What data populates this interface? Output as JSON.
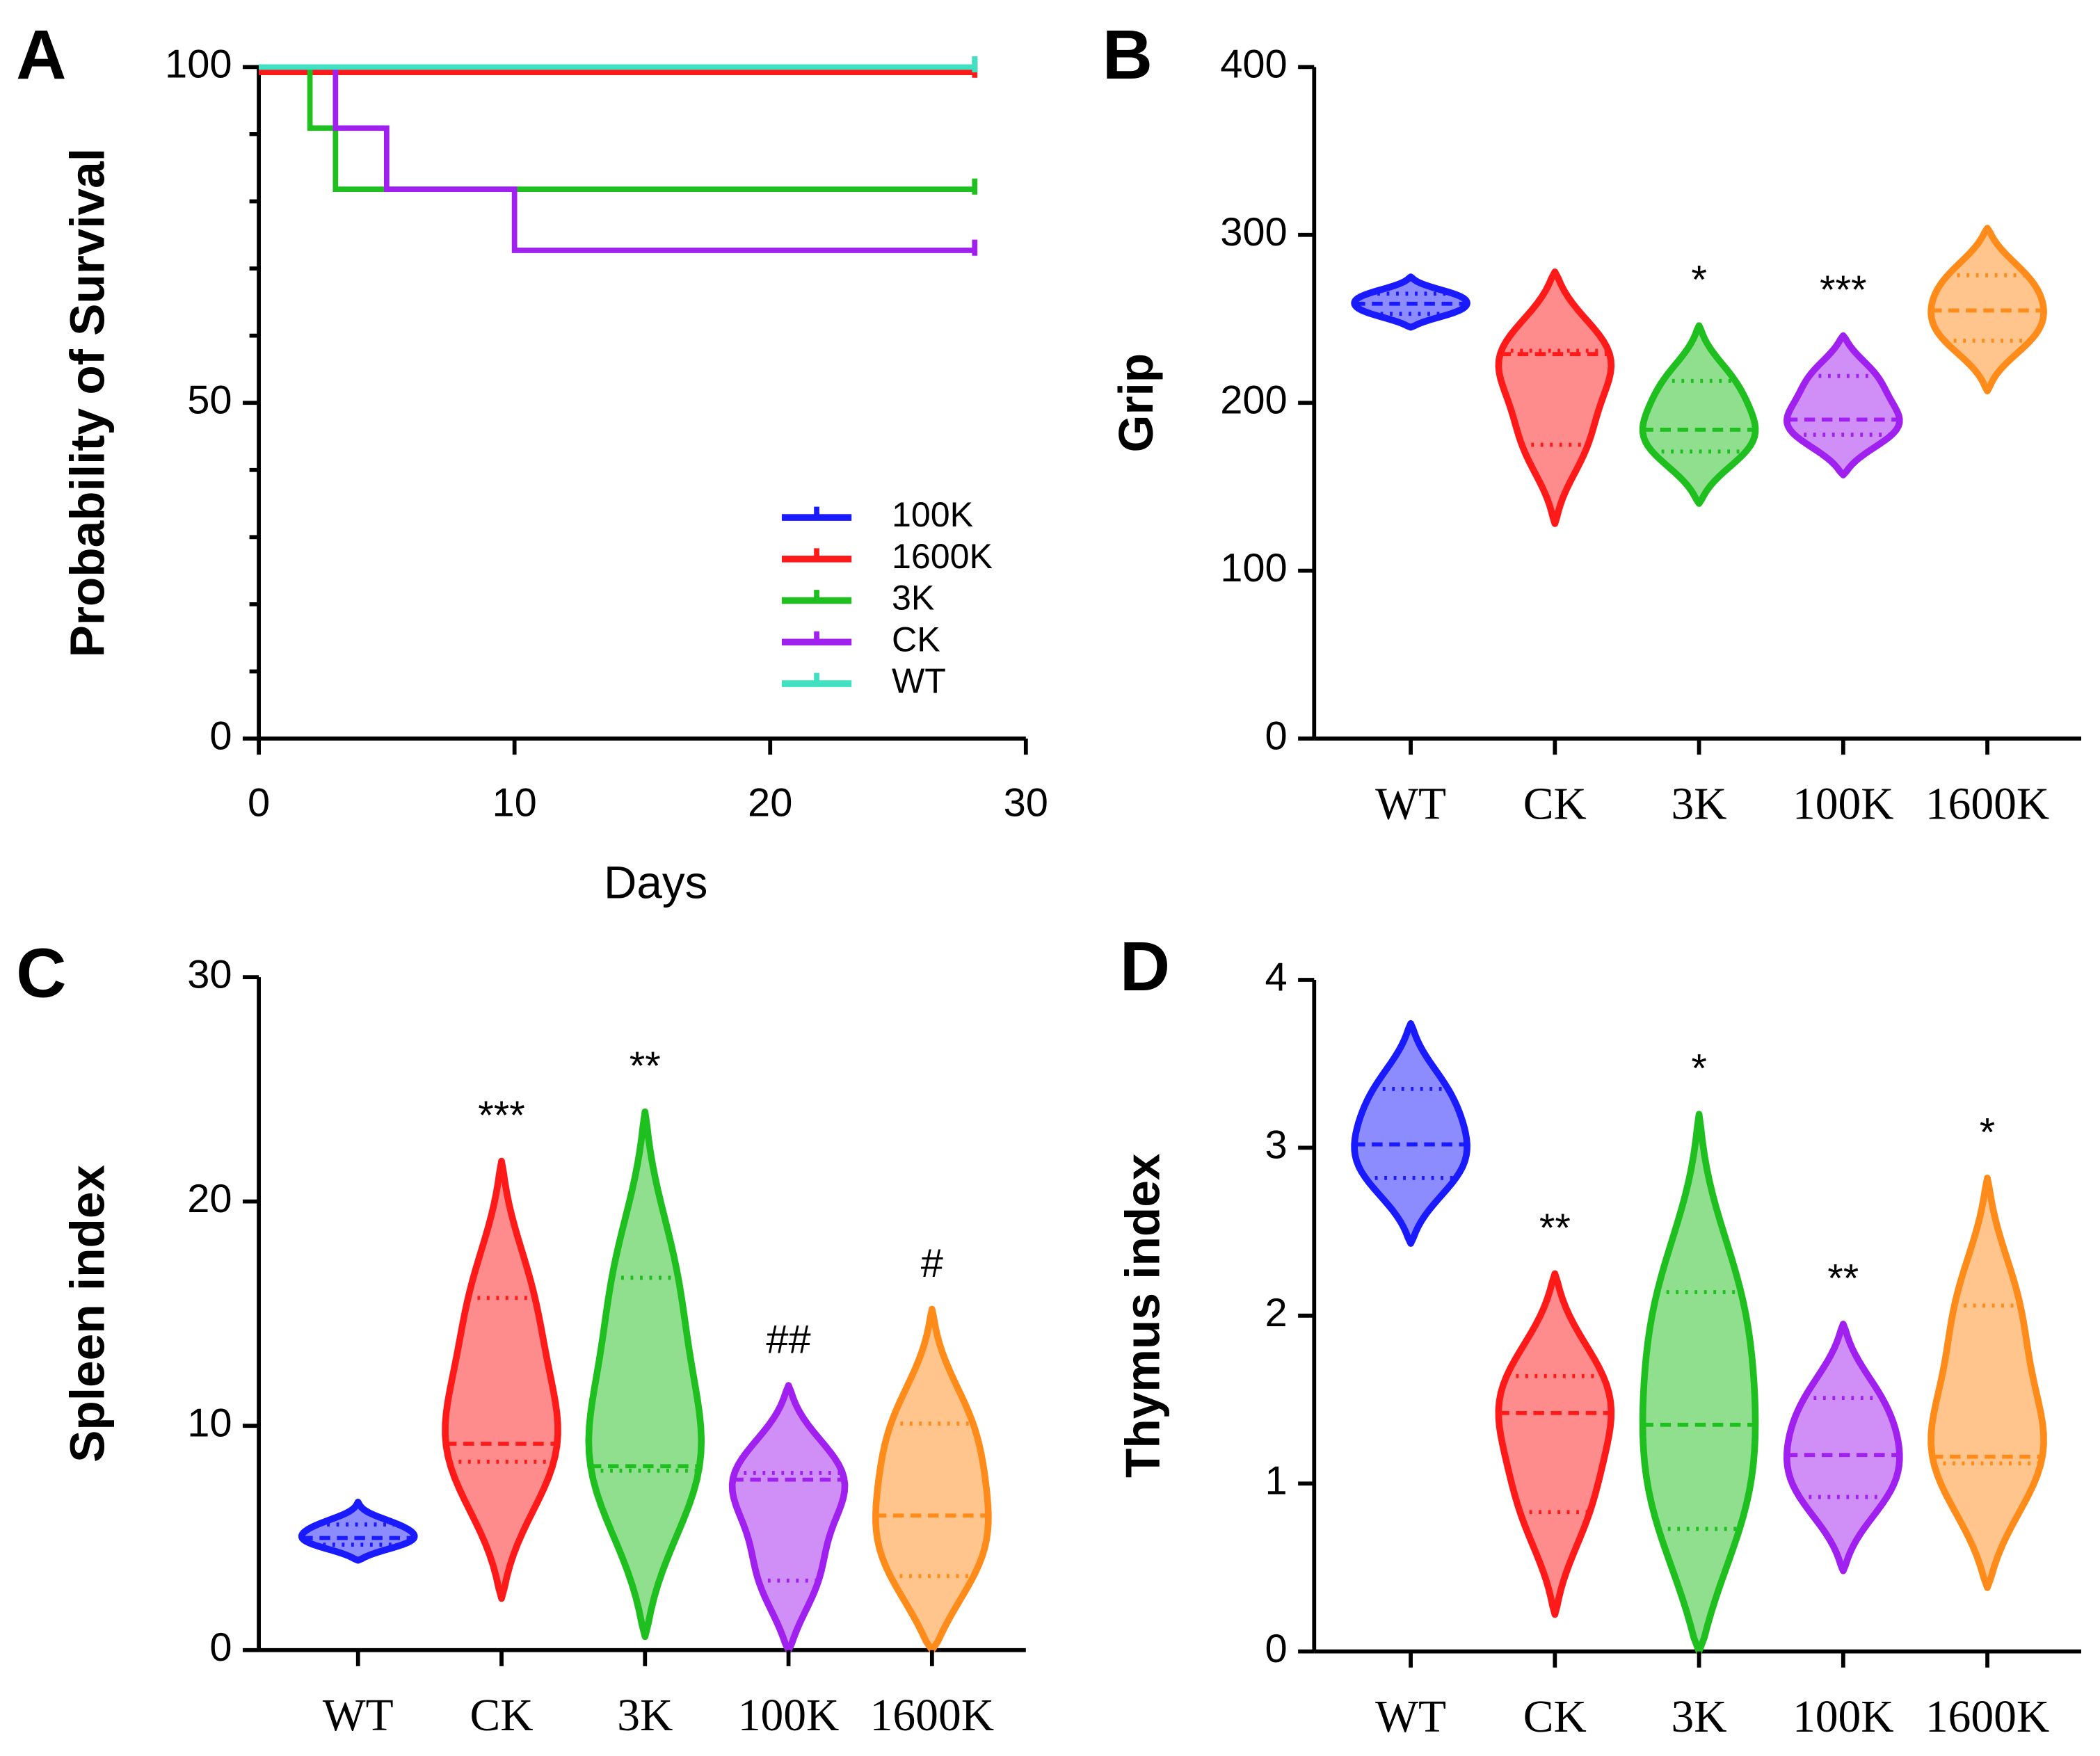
{
  "chart_data": [
    {
      "type": "step",
      "panel": "A",
      "ylabel": "Probability of Survival",
      "xlabel": "Days",
      "xlim": [
        0,
        30
      ],
      "xticks": [
        0,
        10,
        20,
        30
      ],
      "ylim": [
        0,
        100
      ],
      "yticks": [
        0,
        50,
        100
      ],
      "series": [
        {
          "name": "100K",
          "color": "#1a1aff",
          "x": [
            0,
            28
          ],
          "values": [
            100,
            100
          ]
        },
        {
          "name": "1600K",
          "color": "#ff1a1a",
          "x": [
            0,
            28
          ],
          "values": [
            99.2,
            99.2
          ]
        },
        {
          "name": "3K",
          "color": "#1fbf1f",
          "x": [
            0,
            2,
            3,
            28
          ],
          "values": [
            100,
            90.9,
            81.8,
            81.8
          ]
        },
        {
          "name": "CK",
          "color": "#a020f0",
          "x": [
            0,
            3,
            5,
            10,
            28
          ],
          "values": [
            100,
            90.9,
            81.8,
            72.7,
            72.7
          ]
        },
        {
          "name": "WT",
          "color": "#40e0c0",
          "x": [
            0,
            28
          ],
          "values": [
            100,
            100
          ]
        }
      ]
    },
    {
      "type": "violin",
      "panel": "B",
      "ylabel": "Grip",
      "ylim": [
        0,
        400
      ],
      "yticks": [
        0,
        100,
        200,
        300,
        400
      ],
      "categories": [
        "WT",
        "CK",
        "3K",
        "100K",
        "1600K"
      ],
      "colors": [
        "#1a1aff",
        "#ff1a1a",
        "#1fbf1f",
        "#a020f0",
        "#ff8c1a"
      ],
      "min": [
        245,
        128,
        140,
        157,
        207
      ],
      "q1": [
        253,
        175,
        171,
        181,
        237
      ],
      "median": [
        259,
        229,
        184,
        190,
        255
      ],
      "q3": [
        265,
        231,
        213,
        216,
        276
      ],
      "max": [
        275,
        278,
        246,
        240,
        304
      ],
      "annotations": [
        null,
        null,
        "*",
        "***",
        null
      ]
    },
    {
      "type": "violin",
      "panel": "C",
      "ylabel": "Spleen index",
      "ylim": [
        0,
        30
      ],
      "yticks": [
        0,
        10,
        20,
        30
      ],
      "categories": [
        "WT",
        "CK",
        "3K",
        "100K",
        "1600K"
      ],
      "colors": [
        "#1a1aff",
        "#ff1a1a",
        "#1fbf1f",
        "#a020f0",
        "#ff8c1a"
      ],
      "min": [
        4,
        2.3,
        0.6,
        0,
        0
      ],
      "q1": [
        4.7,
        8.4,
        8,
        3.1,
        3.3
      ],
      "median": [
        5,
        9.2,
        8.2,
        7.6,
        6
      ],
      "q3": [
        5.6,
        15.7,
        16.6,
        7.9,
        10.1
      ],
      "max": [
        6.6,
        21.8,
        24,
        11.8,
        15.2
      ],
      "annotations": [
        null,
        "***",
        "**",
        "##",
        "#"
      ]
    },
    {
      "type": "violin",
      "panel": "D",
      "ylabel": "Thymus index",
      "ylim": [
        0,
        4
      ],
      "yticks": [
        0,
        1,
        2,
        3,
        4
      ],
      "categories": [
        "WT",
        "CK",
        "3K",
        "100K",
        "1600K"
      ],
      "colors": [
        "#1a1aff",
        "#ff1a1a",
        "#1fbf1f",
        "#a020f0",
        "#ff8c1a"
      ],
      "min": [
        2.43,
        0.22,
        0,
        0.48,
        0.38
      ],
      "q1": [
        2.82,
        0.83,
        0.73,
        0.92,
        1.12
      ],
      "median": [
        3.02,
        1.42,
        1.35,
        1.17,
        1.16
      ],
      "q3": [
        3.35,
        1.64,
        2.14,
        1.51,
        2.06
      ],
      "max": [
        3.74,
        2.25,
        3.2,
        1.95,
        2.82
      ],
      "annotations": [
        null,
        "**",
        "*",
        "**",
        "*"
      ]
    }
  ]
}
